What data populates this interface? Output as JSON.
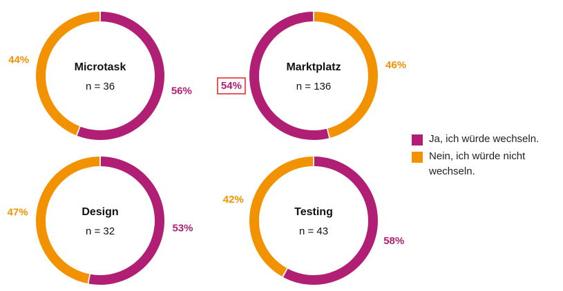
{
  "chart_data": [
    {
      "type": "donut",
      "title": "Microtask",
      "subtitle": "n = 36",
      "values": [
        56,
        44
      ],
      "value_labels": [
        "56%",
        "44%"
      ],
      "clockwise": true
    },
    {
      "type": "donut",
      "title": "Marktplatz",
      "subtitle": "n = 136",
      "values": [
        54,
        46
      ],
      "value_labels": [
        "54%",
        "46%"
      ],
      "clockwise": false,
      "highlight": 0
    },
    {
      "type": "donut",
      "title": "Design",
      "subtitle": "n = 32",
      "values": [
        53,
        47
      ],
      "value_labels": [
        "53%",
        "47%"
      ],
      "clockwise": true
    },
    {
      "type": "donut",
      "title": "Testing",
      "subtitle": "n = 43",
      "values": [
        58,
        42
      ],
      "value_labels": [
        "58%",
        "42%"
      ],
      "clockwise": true
    }
  ],
  "legend": [
    {
      "name": "Ja, ich würde wechseln.",
      "color": "#b01f74"
    },
    {
      "name": "Nein, ich würde nicht wechseln.",
      "color": "#f39200"
    }
  ]
}
